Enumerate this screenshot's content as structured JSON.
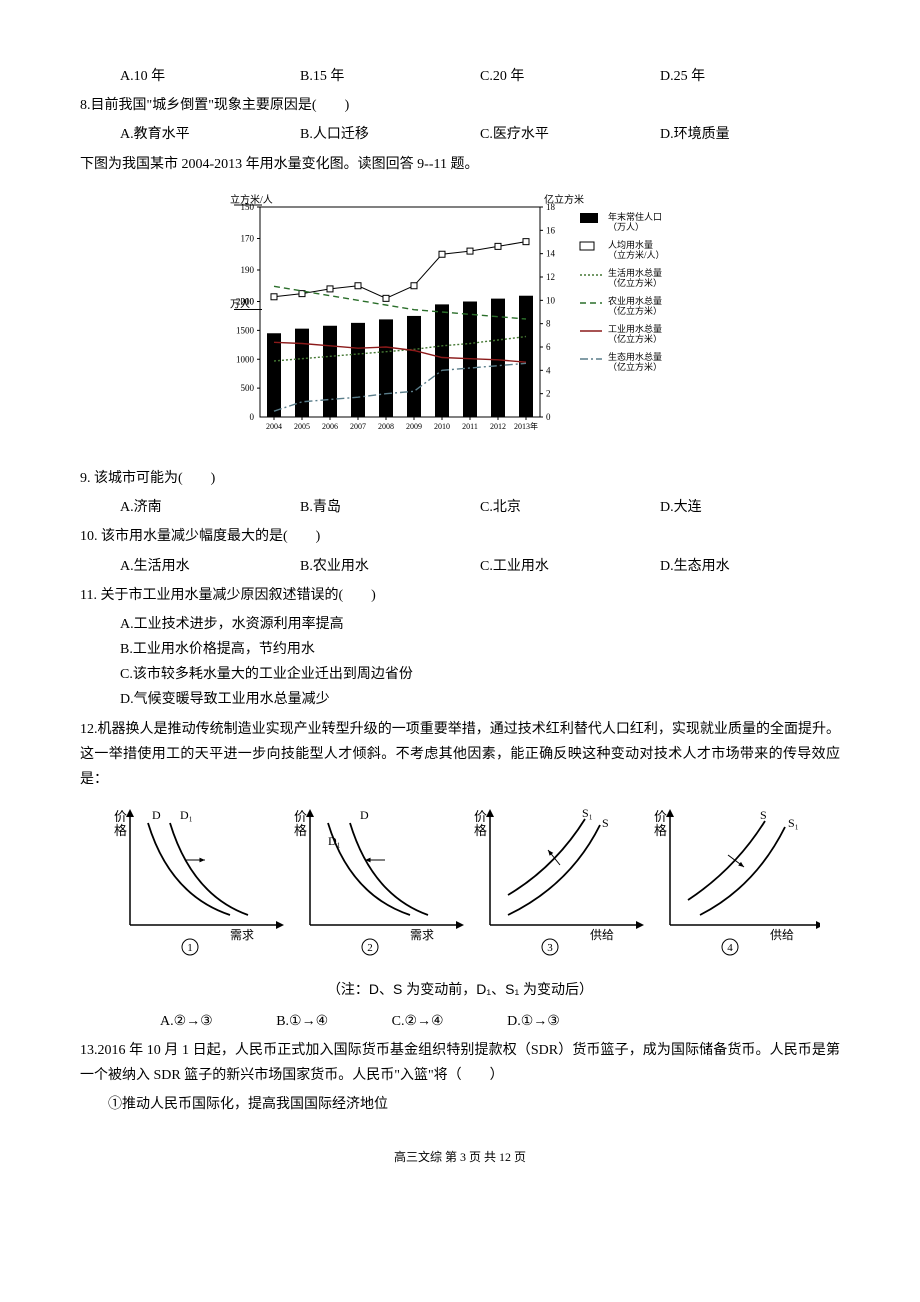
{
  "q7_options": {
    "a": "A.10 年",
    "b": "B.15 年",
    "c": "C.20 年",
    "d": "D.25 年"
  },
  "q8": {
    "stem": "8.目前我国\"城乡倒置\"现象主要原因是(　　)",
    "a": "A.教育水平",
    "b": "B.人口迁移",
    "c": "C.医疗水平",
    "d": "D.环境质量"
  },
  "chart_intro": "下图为我国某市 2004-2013 年用水量变化图。读图回答 9--11 题。",
  "chart1": {
    "y1_label": "立方米/人",
    "y1_ticks": [
      150,
      170,
      190,
      210
    ],
    "y2_label": "亿立方米",
    "y2_ticks": [
      0,
      2,
      4,
      6,
      8,
      10,
      12,
      14,
      16,
      18
    ],
    "y3_label": "万人",
    "y3_ticks": [
      500,
      1000,
      1500,
      2000
    ],
    "x_ticks": [
      "2004",
      "2005",
      "2006",
      "2007",
      "2008",
      "2009",
      "2010",
      "2011",
      "2012",
      "2013年"
    ],
    "legend": {
      "pop": "年末常住人口（万人）",
      "perCap": "人均用水量（立方米/人）",
      "life": "生活用水总量（亿立方米）",
      "agri": "农业用水总量（亿立方米）",
      "ind": "工业用水总量（亿立方米）",
      "eco": "生态用水总量（亿立方米）"
    },
    "colors": {
      "pop": "#000000",
      "perCap": "#000000",
      "life": "#447733",
      "agri": "#2a6e2a",
      "ind": "#8b1a1a",
      "eco": "#5a7d8a",
      "grid": "#000000",
      "bg": "#ffffff"
    },
    "pop_values": [
      1450,
      1530,
      1580,
      1630,
      1690,
      1750,
      1950,
      2000,
      2050,
      2100
    ],
    "perCap_values": [
      207,
      205,
      202,
      200,
      208,
      200,
      180,
      178,
      175,
      172
    ],
    "life_values": [
      4.8,
      5.0,
      5.2,
      5.4,
      5.6,
      5.8,
      6.1,
      6.3,
      6.6,
      6.9
    ],
    "agri_values": [
      11.2,
      10.8,
      10.4,
      10.0,
      9.6,
      9.2,
      9.0,
      8.8,
      8.6,
      8.4
    ],
    "ind_values": [
      6.4,
      6.3,
      6.1,
      5.9,
      6.0,
      5.7,
      5.1,
      5.0,
      4.9,
      4.7
    ],
    "eco_values": [
      0.5,
      1.3,
      1.5,
      1.7,
      2.0,
      2.2,
      4.0,
      4.2,
      4.4,
      4.6
    ]
  },
  "q9": {
    "stem": "9. 该城市可能为(　　)",
    "a": "A.济南",
    "b": "B.青岛",
    "c": "C.北京",
    "d": "D.大连"
  },
  "q10": {
    "stem": "10. 该市用水量减少幅度最大的是(　　)",
    "a": "A.生活用水",
    "b": "B.农业用水",
    "c": "C.工业用水",
    "d": "D.生态用水"
  },
  "q11": {
    "stem": "11. 关于市工业用水量减少原因叙述错误的(　　)",
    "a": "A.工业技术进步，水资源利用率提高",
    "b": "B.工业用水价格提高，节约用水",
    "c": "C.该市较多耗水量大的工业企业迁出到周边省份",
    "d": "D.气候变暖导致工业用水总量减少"
  },
  "q12": {
    "stem": "12.机器换人是推动传统制造业实现产业转型升级的一项重要举措，通过技术红利替代人口红利，实现就业质量的全面提升。这一举措使用工的天平进一步向技能型人才倾斜。不考虑其他因素，能正确反映这种变动对技术人才市场带来的传导效应是：",
    "note": "（注：D、S 为变动前，D₁、S₁ 为变动后）",
    "a": "A.②→③",
    "b": "B.①→④",
    "c": "C.②→④",
    "d": "D.①→③",
    "charts": {
      "axis_y": "价格",
      "demand": "需求",
      "supply": "供给",
      "labels": [
        "①",
        "②",
        "③",
        "④"
      ],
      "d": "D",
      "d1": "D₁",
      "s": "S",
      "s1": "S₁",
      "line_color": "#000000"
    }
  },
  "q13": {
    "stem": "13.2016 年 10 月 1 日起，人民币正式加入国际货币基金组织特别提款权（SDR）货币篮子，成为国际储备货币。人民币是第一个被纳入 SDR 篮子的新兴市场国家货币。人民币\"入篮\"将（　　）",
    "opt1": "①推动人民币国际化，提高我国国际经济地位"
  },
  "footer": "高三文综 第 3 页 共 12 页"
}
